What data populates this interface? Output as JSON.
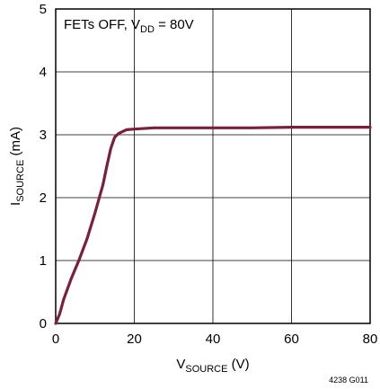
{
  "chart_data": {
    "type": "line",
    "title": "",
    "xlabel": {
      "main": "V",
      "sub": "SOURCE",
      "suffix": " (V)"
    },
    "ylabel": {
      "main": "I",
      "sub": "SOURCE",
      "suffix": " (mA)"
    },
    "xlim": [
      0,
      80
    ],
    "ylim": [
      0,
      5
    ],
    "x_ticks": [
      0,
      20,
      40,
      60,
      80
    ],
    "y_ticks": [
      0,
      1,
      2,
      3,
      4,
      5
    ],
    "x_tick_labels": [
      "0",
      "20",
      "40",
      "60",
      "80"
    ],
    "y_tick_labels": [
      "0",
      "1",
      "2",
      "3",
      "4",
      "5"
    ],
    "grid": true,
    "annotation": {
      "prefix": "FETs OFF, V",
      "sub": "DD",
      "suffix": " = 80V"
    },
    "series": [
      {
        "color": "#7a1f3d",
        "points": [
          [
            0,
            0
          ],
          [
            1,
            0.15
          ],
          [
            2,
            0.38
          ],
          [
            4,
            0.72
          ],
          [
            6,
            1.02
          ],
          [
            8,
            1.35
          ],
          [
            10,
            1.76
          ],
          [
            12,
            2.2
          ],
          [
            13,
            2.5
          ],
          [
            14,
            2.78
          ],
          [
            15,
            2.96
          ],
          [
            16,
            3.02
          ],
          [
            18,
            3.08
          ],
          [
            20,
            3.09
          ],
          [
            25,
            3.11
          ],
          [
            30,
            3.11
          ],
          [
            40,
            3.11
          ],
          [
            50,
            3.11
          ],
          [
            60,
            3.12
          ],
          [
            70,
            3.12
          ],
          [
            80,
            3.12
          ]
        ]
      }
    ],
    "figure_id": "4238 G011"
  }
}
